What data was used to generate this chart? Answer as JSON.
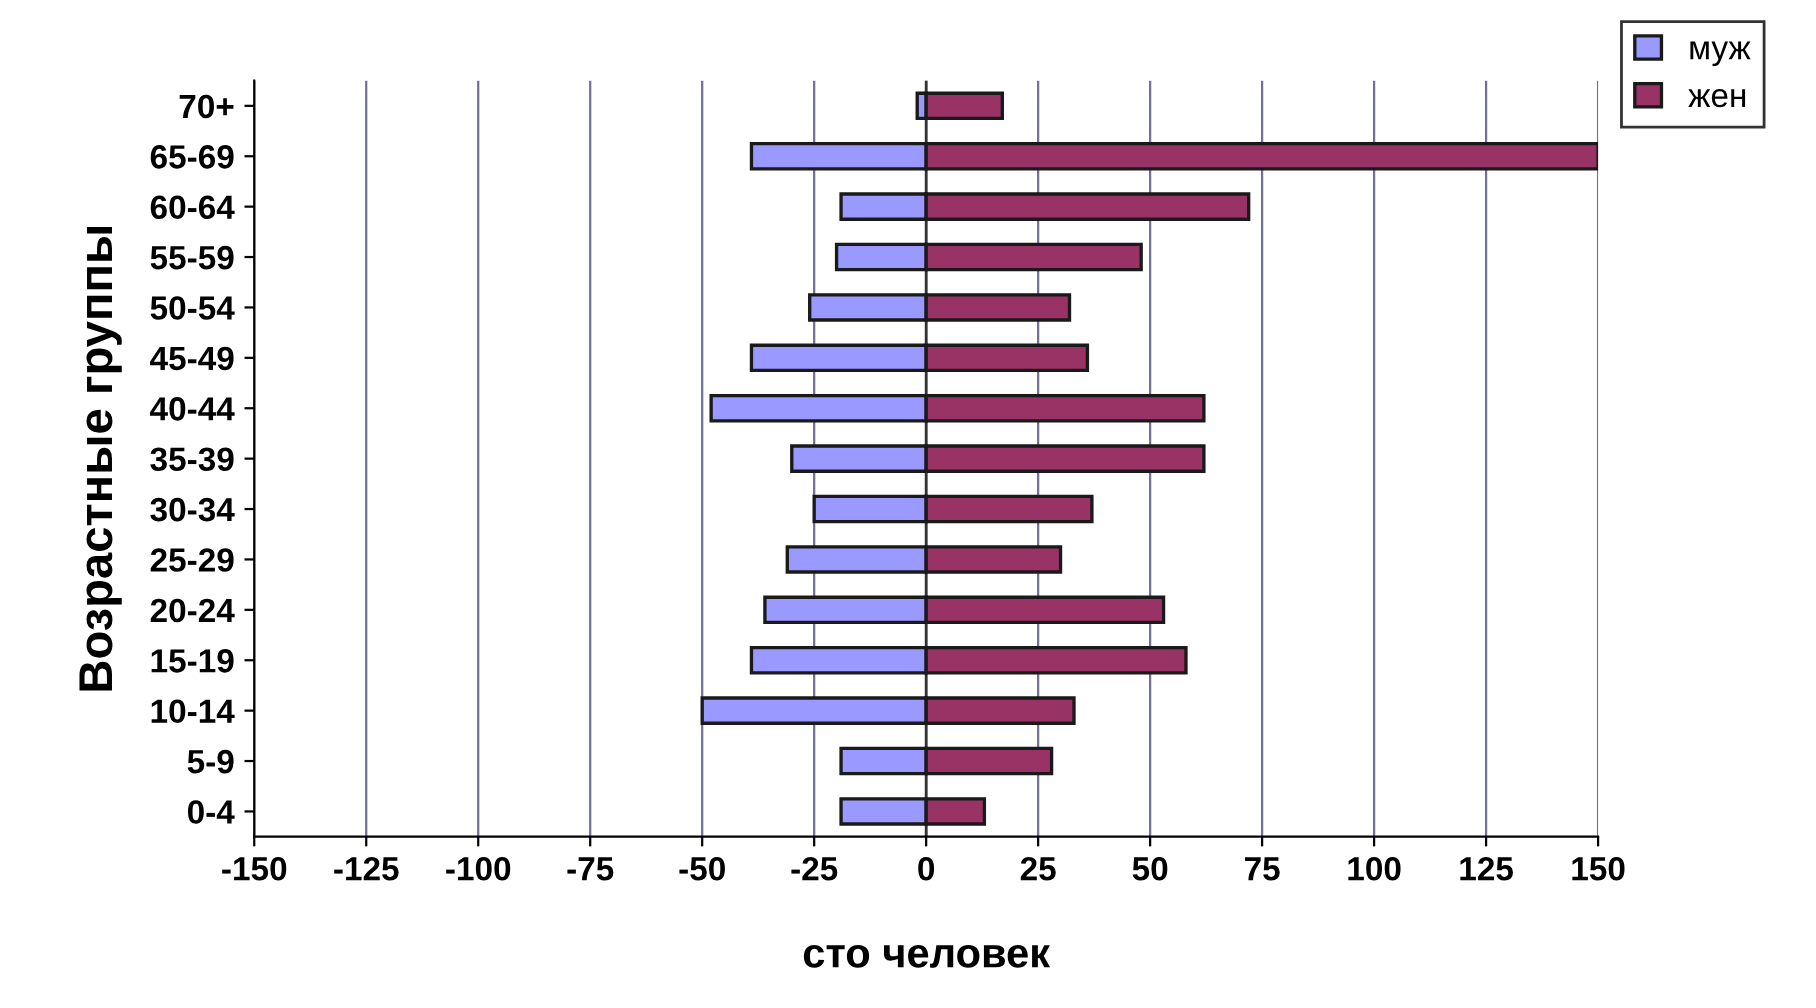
{
  "chart_data": {
    "type": "bar",
    "orientation": "horizontal",
    "xlabel": "сто человек",
    "ylabel": "Возрастные группы",
    "categories": [
      "70+",
      "65-69",
      "60-64",
      "55-59",
      "50-54",
      "45-49",
      "40-44",
      "35-39",
      "30-34",
      "25-29",
      "20-24",
      "15-19",
      "10-14",
      "5-9",
      "0-4"
    ],
    "series": [
      {
        "name": "муж",
        "color": "#9999ff",
        "values": [
          -2,
          -39,
          -19,
          -20,
          -26,
          -39,
          -48,
          -30,
          -25,
          -31,
          -36,
          -39,
          -50,
          -19,
          -19
        ]
      },
      {
        "name": "жен",
        "color": "#993366",
        "values": [
          17,
          150,
          72,
          48,
          32,
          36,
          62,
          62,
          37,
          30,
          53,
          58,
          33,
          28,
          13
        ]
      }
    ],
    "xlim": [
      -150,
      150
    ],
    "xticks": [
      -150,
      -125,
      -100,
      -75,
      -50,
      -25,
      0,
      25,
      50,
      75,
      100,
      125,
      150
    ],
    "grid": "x",
    "legend": "top right",
    "stacked": true
  }
}
